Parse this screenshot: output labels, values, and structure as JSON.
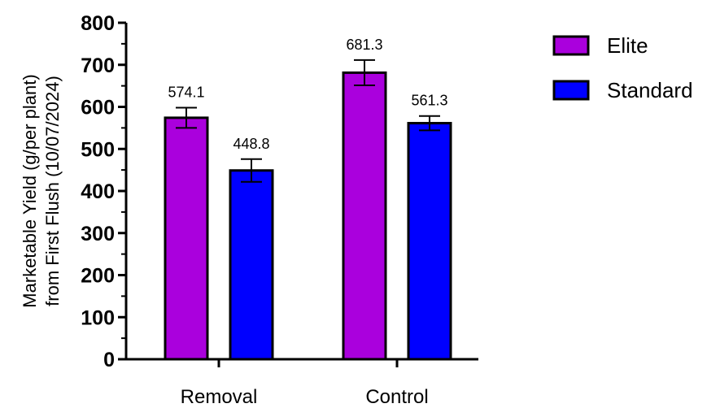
{
  "chart_data": {
    "type": "bar",
    "categories": [
      "Removal",
      "Control"
    ],
    "series": [
      {
        "name": "Elite",
        "color": "#aa00dd",
        "values": [
          574.1,
          681.3
        ],
        "errors": [
          24,
          30
        ],
        "value_labels": [
          "574.1",
          "681.3"
        ]
      },
      {
        "name": "Standard",
        "color": "#0000ff",
        "values": [
          448.8,
          561.3
        ],
        "errors": [
          27,
          17
        ],
        "value_labels": [
          "448.8",
          "561.3"
        ]
      }
    ],
    "ylabel_lines": [
      "Marketable Yield (g/per plant)",
      "from First Flush (10/07/2024)"
    ],
    "xlabel": "",
    "ylim": [
      0,
      800
    ],
    "yticks": [
      0,
      100,
      200,
      300,
      400,
      500,
      600,
      700,
      800
    ],
    "ytick_labels": [
      "0",
      "100",
      "200",
      "300",
      "400",
      "500",
      "600",
      "700",
      "800"
    ],
    "grid": false,
    "legend_position": "top-right"
  }
}
